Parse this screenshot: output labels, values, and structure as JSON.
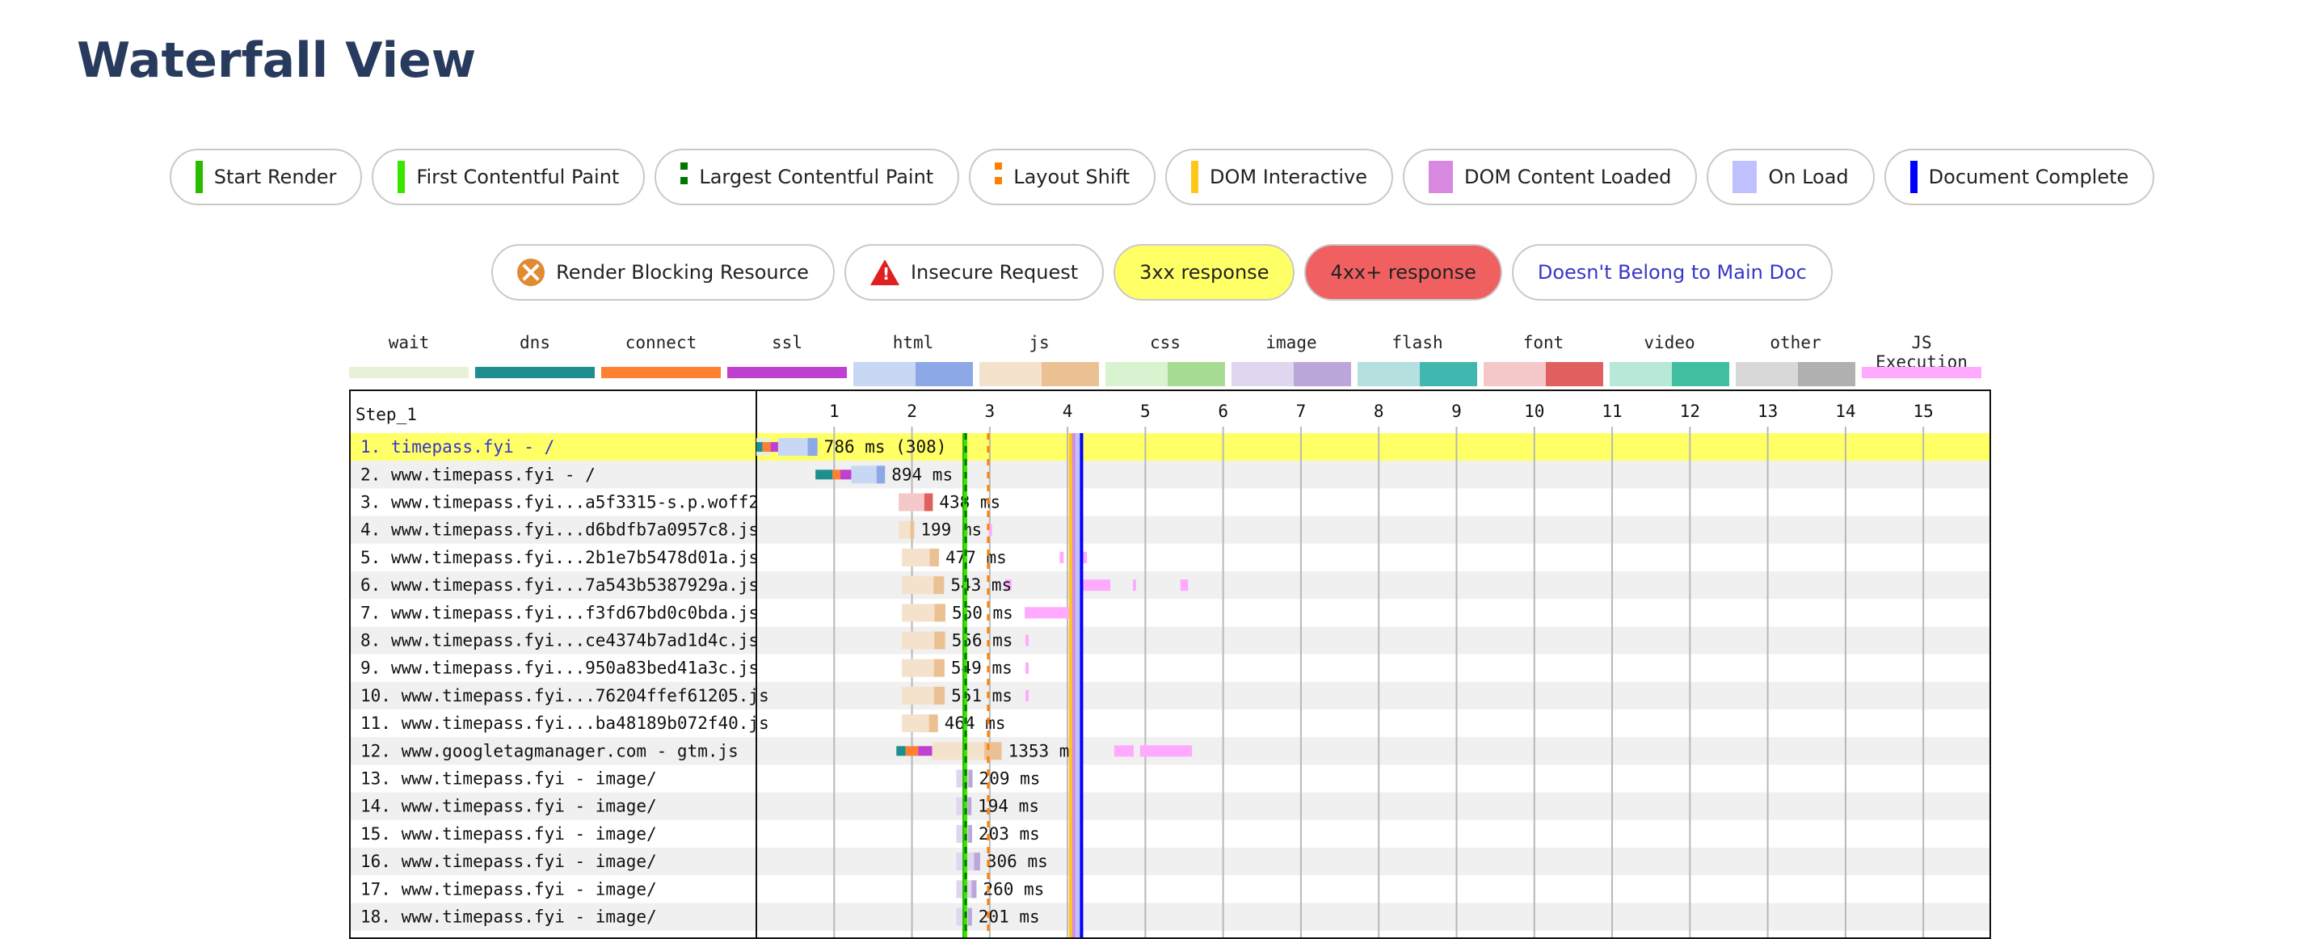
{
  "page": {
    "title": "Waterfall View"
  },
  "legend_events": [
    {
      "key": "start",
      "label": "Start Render",
      "color": "#28bc00"
    },
    {
      "key": "fcp",
      "label": "First Contentful Paint",
      "color": "#39e600"
    },
    {
      "key": "lcp",
      "label": "Largest Contentful Paint",
      "color": "#007700"
    },
    {
      "key": "ls",
      "label": "Layout Shift",
      "color": "#ff8000"
    },
    {
      "key": "di",
      "label": "DOM Interactive",
      "color": "#ffc61a"
    },
    {
      "key": "dcl",
      "label": "DOM Content Loaded",
      "color": "#d888df"
    },
    {
      "key": "onload",
      "label": "On Load",
      "color": "#c0c0ff"
    },
    {
      "key": "dc",
      "label": "Document Complete",
      "color": "#0000ff"
    }
  ],
  "legend_flags": [
    {
      "key": "block",
      "label": "Render Blocking Resource",
      "icon": "render-blocking-icon"
    },
    {
      "key": "insecure",
      "label": "Insecure Request",
      "icon": "warning-icon"
    },
    {
      "key": "r3xx",
      "label": "3xx response",
      "color": "#ffff66"
    },
    {
      "key": "r4xx",
      "label": "4xx+ response",
      "color": "#f06060"
    },
    {
      "key": "notmain",
      "label": "Doesn't Belong to Main Doc",
      "color": "#3636c8"
    }
  ],
  "request_types": [
    {
      "label": "wait",
      "light": "#e8f0d8",
      "dark": "#e8f0d8"
    },
    {
      "label": "dns",
      "light": "#1f8e8e",
      "dark": "#1f8e8e"
    },
    {
      "label": "connect",
      "light": "#ff8030",
      "dark": "#ff8030"
    },
    {
      "label": "ssl",
      "light": "#c040d0",
      "dark": "#c040d0"
    },
    {
      "label": "html",
      "light": "#c8d8f4",
      "dark": "#8ca8e6"
    },
    {
      "label": "js",
      "light": "#f4e2cc",
      "dark": "#ebc194"
    },
    {
      "label": "css",
      "light": "#d9f2d0",
      "dark": "#a8dc92"
    },
    {
      "label": "image",
      "light": "#e0d6ef",
      "dark": "#bba6da"
    },
    {
      "label": "flash",
      "light": "#b6e0e0",
      "dark": "#40b8b0"
    },
    {
      "label": "font",
      "light": "#f4c8c8",
      "dark": "#e06060"
    },
    {
      "label": "video",
      "light": "#b8e8d8",
      "dark": "#40c0a0"
    },
    {
      "label": "other",
      "light": "#d8d8d8",
      "dark": "#b0b0b0"
    },
    {
      "label": "JS Execution",
      "light": "#ffaaff",
      "dark": "#ffaaff"
    }
  ],
  "waterfall": {
    "step_label": "Step_1",
    "ticks": [
      "1",
      "2",
      "3",
      "4",
      "5",
      "6",
      "7",
      "8",
      "9",
      "10",
      "11",
      "12",
      "13",
      "14",
      "15"
    ],
    "max_seconds": 15.85,
    "markers": [
      {
        "name": "start",
        "t": 2.67,
        "color": "#28bc00"
      },
      {
        "name": "fcp",
        "t": 2.69,
        "color": "#39e600"
      },
      {
        "name": "lcp",
        "t": 2.69,
        "color": "#007700"
      },
      {
        "name": "ls",
        "t": 2.98,
        "color": "#ff8000"
      },
      {
        "name": "di",
        "t": 4.04,
        "color": "#ffc61a"
      },
      {
        "name": "dcl",
        "t": 4.09,
        "color": "#d888df"
      },
      {
        "name": "onload",
        "t": 4.13,
        "color": "#c0c0ff"
      },
      {
        "name": "dc",
        "t": 4.18,
        "color": "#0000ff"
      }
    ],
    "requests": [
      {
        "label": "1. timepass.fyi - /",
        "type": "html",
        "start": 0.0,
        "dur_ms": 786,
        "wait_end": 0.18,
        "dns": 0.08,
        "connect": 0.1,
        "ssl": 0.1,
        "text": "786 ms (308)",
        "highlight": "3xx",
        "notmain": true,
        "js_exec": []
      },
      {
        "label": "2. www.timepass.fyi - /",
        "type": "html",
        "start": 0.76,
        "dur_ms": 894,
        "wait_end": 0.0,
        "dns": 0.22,
        "connect": 0.1,
        "ssl": 0.14,
        "text": "894 ms",
        "highlight": "",
        "notmain": false,
        "js_exec": []
      },
      {
        "label": "3. www.timepass.fyi...a5f3315-s.p.woff2",
        "type": "font",
        "start": 1.83,
        "dur_ms": 438,
        "wait_end": 0,
        "dns": 0,
        "connect": 0,
        "ssl": 0,
        "text": "438 ms",
        "highlight": "",
        "notmain": false,
        "js_exec": []
      },
      {
        "label": "4. www.timepass.fyi...d6bdfb7a0957c8.js",
        "type": "js",
        "start": 1.83,
        "dur_ms": 199,
        "wait_end": 0,
        "dns": 0,
        "connect": 0,
        "ssl": 0,
        "text": "199 ms",
        "highlight": "",
        "notmain": false,
        "js_exec": [
          [
            2.99,
            3.03
          ]
        ]
      },
      {
        "label": "5. www.timepass.fyi...2b1e7b5478d01a.js",
        "type": "js",
        "start": 1.87,
        "dur_ms": 477,
        "wait_end": 0,
        "dns": 0,
        "connect": 0,
        "ssl": 0,
        "text": "477 ms",
        "highlight": "",
        "notmain": false,
        "js_exec": [
          [
            3.9,
            3.95
          ],
          [
            4.2,
            4.25
          ]
        ]
      },
      {
        "label": "6. www.timepass.fyi...7a543b5387929a.js",
        "type": "js",
        "start": 1.87,
        "dur_ms": 543,
        "wait_end": 0,
        "dns": 0,
        "connect": 0,
        "ssl": 0,
        "text": "543 ms",
        "highlight": "",
        "notmain": false,
        "js_exec": [
          [
            3.2,
            3.28
          ],
          [
            4.2,
            4.55
          ],
          [
            4.84,
            4.88
          ],
          [
            5.45,
            5.55
          ]
        ]
      },
      {
        "label": "7. www.timepass.fyi...f3fd67bd0c0bda.js",
        "type": "js",
        "start": 1.87,
        "dur_ms": 560,
        "wait_end": 0,
        "dns": 0,
        "connect": 0,
        "ssl": 0,
        "text": "560 ms",
        "highlight": "",
        "notmain": false,
        "js_exec": [
          [
            3.45,
            4.05
          ]
        ]
      },
      {
        "label": "8. www.timepass.fyi...ce4374b7ad1d4c.js",
        "type": "js",
        "start": 1.87,
        "dur_ms": 556,
        "wait_end": 0,
        "dns": 0,
        "connect": 0,
        "ssl": 0,
        "text": "556 ms",
        "highlight": "",
        "notmain": false,
        "js_exec": [
          [
            3.46,
            3.5
          ]
        ]
      },
      {
        "label": "9. www.timepass.fyi...950a83bed41a3c.js",
        "type": "js",
        "start": 1.87,
        "dur_ms": 549,
        "wait_end": 0,
        "dns": 0,
        "connect": 0,
        "ssl": 0,
        "text": "549 ms",
        "highlight": "",
        "notmain": false,
        "js_exec": [
          [
            3.46,
            3.5
          ]
        ]
      },
      {
        "label": "10. www.timepass.fyi...76204ffef61205.js",
        "type": "js",
        "start": 1.87,
        "dur_ms": 551,
        "wait_end": 0,
        "dns": 0,
        "connect": 0,
        "ssl": 0,
        "text": "551 ms",
        "highlight": "",
        "notmain": false,
        "js_exec": [
          [
            3.46,
            3.5
          ]
        ]
      },
      {
        "label": "11. www.timepass.fyi...ba48189b072f40.js",
        "type": "js",
        "start": 1.87,
        "dur_ms": 464,
        "wait_end": 0,
        "dns": 0,
        "connect": 0,
        "ssl": 0,
        "text": "464 ms",
        "highlight": "",
        "notmain": false,
        "js_exec": []
      },
      {
        "label": "12. www.googletagmanager.com - gtm.js",
        "type": "js",
        "start": 1.8,
        "dur_ms": 1353,
        "wait_end": 0,
        "dns": 0.12,
        "connect": 0.16,
        "ssl": 0.18,
        "text": "1353 ms",
        "highlight": "",
        "notmain": false,
        "js_exec": [
          [
            4.6,
            4.85
          ],
          [
            4.93,
            5.6
          ]
        ]
      },
      {
        "label": "13. www.timepass.fyi - image/",
        "type": "image",
        "start": 2.57,
        "dur_ms": 209,
        "wait_end": 0,
        "dns": 0,
        "connect": 0,
        "ssl": 0,
        "text": "209 ms",
        "highlight": "",
        "notmain": false,
        "js_exec": []
      },
      {
        "label": "14. www.timepass.fyi - image/",
        "type": "image",
        "start": 2.57,
        "dur_ms": 194,
        "wait_end": 0,
        "dns": 0,
        "connect": 0,
        "ssl": 0,
        "text": "194 ms",
        "highlight": "",
        "notmain": false,
        "js_exec": []
      },
      {
        "label": "15. www.timepass.fyi - image/",
        "type": "image",
        "start": 2.57,
        "dur_ms": 203,
        "wait_end": 0,
        "dns": 0,
        "connect": 0,
        "ssl": 0,
        "text": "203 ms",
        "highlight": "",
        "notmain": false,
        "js_exec": []
      },
      {
        "label": "16. www.timepass.fyi - image/",
        "type": "image",
        "start": 2.57,
        "dur_ms": 306,
        "wait_end": 0,
        "dns": 0,
        "connect": 0,
        "ssl": 0,
        "text": "306 ms",
        "highlight": "",
        "notmain": false,
        "js_exec": []
      },
      {
        "label": "17. www.timepass.fyi - image/",
        "type": "image",
        "start": 2.57,
        "dur_ms": 260,
        "wait_end": 0,
        "dns": 0,
        "connect": 0,
        "ssl": 0,
        "text": "260 ms",
        "highlight": "",
        "notmain": false,
        "js_exec": []
      },
      {
        "label": "18. www.timepass.fyi - image/",
        "type": "image",
        "start": 2.57,
        "dur_ms": 201,
        "wait_end": 0,
        "dns": 0,
        "connect": 0,
        "ssl": 0,
        "text": "201 ms",
        "highlight": "",
        "notmain": false,
        "js_exec": []
      }
    ]
  }
}
